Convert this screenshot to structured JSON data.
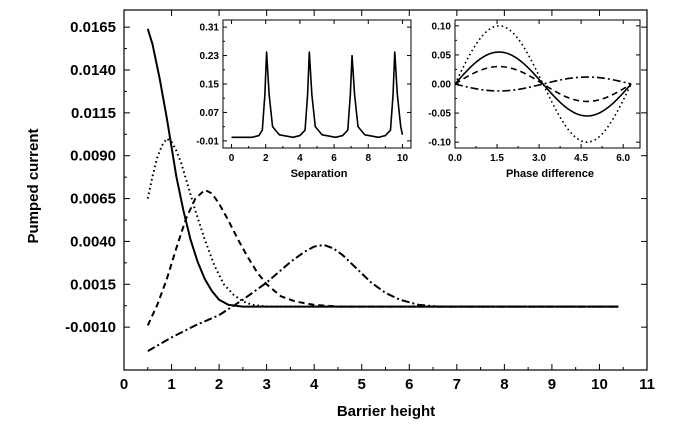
{
  "chart_data": [
    {
      "id": "main",
      "type": "line",
      "title": "",
      "xlabel": "Barrier height",
      "ylabel": "Pumped current",
      "xlim": [
        0,
        11
      ],
      "ylim": [
        -0.0035,
        0.0175
      ],
      "xticks": [
        "0",
        "1",
        "2",
        "3",
        "4",
        "5",
        "6",
        "7",
        "8",
        "9",
        "10",
        "11"
      ],
      "yticks": [
        "-0.0010",
        "0.0015",
        "0.0040",
        "0.0065",
        "0.0090",
        "0.0115",
        "0.0140",
        "0.0165"
      ],
      "xtick_values": [
        0,
        1,
        2,
        3,
        4,
        5,
        6,
        7,
        8,
        9,
        10,
        11
      ],
      "ytick_values": [
        -0.001,
        0.0015,
        0.004,
        0.0065,
        0.009,
        0.0115,
        0.014,
        0.0165
      ],
      "grid": false,
      "series": [
        {
          "style": "solid",
          "x": [
            0.5,
            0.6,
            0.75,
            0.9,
            1.0,
            1.1,
            1.25,
            1.4,
            1.55,
            1.7,
            1.85,
            2.0,
            2.2,
            2.5,
            3.0,
            4.0,
            6.0,
            8.0,
            10.4
          ],
          "y": [
            0.0164,
            0.0155,
            0.0135,
            0.0112,
            0.0095,
            0.0078,
            0.0058,
            0.0041,
            0.0028,
            0.0018,
            0.0011,
            0.0006,
            0.0003,
            0.0002,
            0.0002,
            0.0002,
            0.0002,
            0.0002,
            0.0002
          ]
        },
        {
          "style": "dotted",
          "x": [
            0.5,
            0.6,
            0.7,
            0.8,
            0.9,
            1.0,
            1.1,
            1.2,
            1.35,
            1.5,
            1.7,
            1.9,
            2.1,
            2.3,
            2.5,
            2.7,
            3.0,
            3.4,
            4.0,
            10.4
          ],
          "y": [
            0.0065,
            0.0078,
            0.0089,
            0.0096,
            0.01,
            0.0098,
            0.0093,
            0.0086,
            0.0072,
            0.0058,
            0.0041,
            0.0026,
            0.0015,
            0.0009,
            0.0005,
            0.0003,
            0.0002,
            0.0002,
            0.0002,
            0.0002
          ]
        },
        {
          "style": "dashed",
          "x": [
            0.5,
            0.7,
            0.9,
            1.1,
            1.3,
            1.5,
            1.7,
            1.85,
            2.0,
            2.2,
            2.4,
            2.6,
            2.8,
            3.0,
            3.3,
            3.6,
            4.0,
            4.5,
            5.0,
            10.4
          ],
          "y": [
            -0.0009,
            0.0003,
            0.0018,
            0.0036,
            0.0053,
            0.0065,
            0.007,
            0.0068,
            0.0062,
            0.0052,
            0.0041,
            0.0031,
            0.0022,
            0.0015,
            0.0008,
            0.0005,
            0.0003,
            0.0002,
            0.0002,
            0.0002
          ]
        },
        {
          "style": "dashdot",
          "x": [
            0.5,
            1.0,
            1.5,
            2.0,
            2.5,
            3.0,
            3.5,
            3.8,
            4.0,
            4.2,
            4.4,
            4.6,
            4.9,
            5.2,
            5.5,
            5.8,
            6.2,
            6.6,
            7.0,
            7.5,
            8.0,
            10.4
          ],
          "y": [
            -0.0024,
            -0.0016,
            -0.0009,
            -0.0003,
            0.0006,
            0.0016,
            0.0028,
            0.0034,
            0.0037,
            0.0038,
            0.0036,
            0.0032,
            0.0024,
            0.0016,
            0.001,
            0.0006,
            0.0003,
            0.0002,
            0.0002,
            0.0002,
            0.0002,
            0.0002
          ]
        }
      ]
    },
    {
      "id": "inset-separation",
      "type": "line",
      "title": "",
      "xlabel": "Separation",
      "ylabel": "",
      "xlim": [
        -0.5,
        10.5
      ],
      "ylim": [
        -0.03,
        0.33
      ],
      "xticks": [
        "0",
        "2",
        "4",
        "6",
        "8",
        "10"
      ],
      "yticks": [
        "-0.01",
        "0.07",
        "0.15",
        "0.23",
        "0.31"
      ],
      "xtick_values": [
        0,
        2,
        4,
        6,
        8,
        10
      ],
      "ytick_values": [
        -0.01,
        0.07,
        0.15,
        0.23,
        0.31
      ],
      "grid": false,
      "series": [
        {
          "style": "solid",
          "x": [
            0.0,
            1.2,
            1.6,
            1.8,
            1.95,
            2.05,
            2.2,
            2.4,
            2.8,
            3.6,
            4.0,
            4.3,
            4.45,
            4.55,
            4.7,
            4.9,
            5.3,
            6.1,
            6.5,
            6.8,
            6.95,
            7.05,
            7.2,
            7.4,
            7.8,
            8.6,
            9.0,
            9.3,
            9.45,
            9.55,
            9.7,
            9.9,
            10.0
          ],
          "y": [
            0.0,
            0.0,
            0.005,
            0.02,
            0.12,
            0.24,
            0.12,
            0.03,
            0.007,
            0.0,
            0.005,
            0.02,
            0.12,
            0.24,
            0.12,
            0.03,
            0.007,
            0.0,
            0.005,
            0.02,
            0.12,
            0.23,
            0.12,
            0.03,
            0.007,
            0.0,
            0.005,
            0.02,
            0.12,
            0.24,
            0.12,
            0.03,
            0.007
          ]
        }
      ]
    },
    {
      "id": "inset-phase",
      "type": "line",
      "title": "",
      "xlabel": "Phase difference",
      "ylabel": "",
      "xlim": [
        0,
        6.6
      ],
      "ylim": [
        -0.11,
        0.11
      ],
      "xticks": [
        "0.0",
        "1.5",
        "3.0",
        "4.5",
        "6.0"
      ],
      "yticks": [
        "-0.10",
        "-0.05",
        "0.00",
        "0.05",
        "0.10"
      ],
      "xtick_values": [
        0.0,
        1.5,
        3.0,
        4.5,
        6.0
      ],
      "ytick_values": [
        -0.1,
        -0.05,
        0.0,
        0.05,
        0.1
      ],
      "grid": false,
      "series": [
        {
          "style": "dotted",
          "amplitude": 0.1
        },
        {
          "style": "solid",
          "amplitude": 0.055
        },
        {
          "style": "dashed",
          "amplitude": 0.03
        },
        {
          "style": "dashdot",
          "amplitude": -0.012
        }
      ]
    }
  ]
}
